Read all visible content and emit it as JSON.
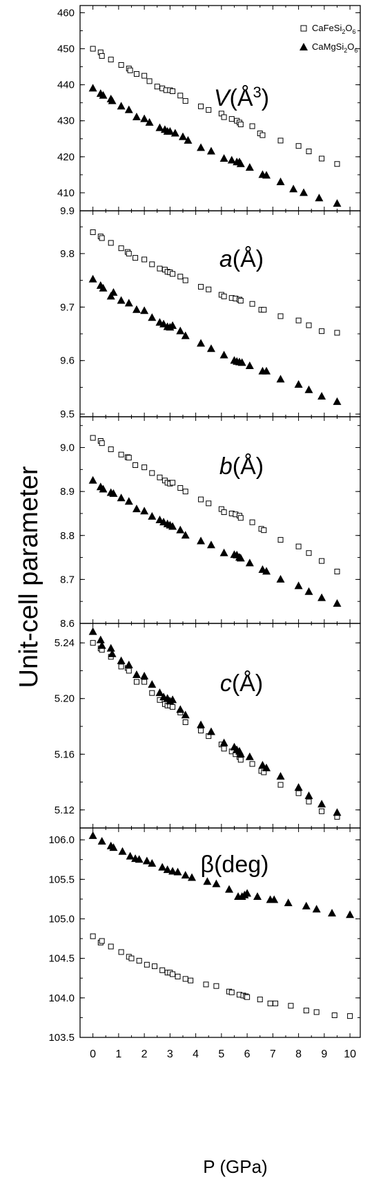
{
  "figure": {
    "ylabel": "Unit-cell parameter",
    "xlabel": "P (GPa)",
    "x_ticks": [
      "0",
      "1",
      "2",
      "3",
      "4",
      "5",
      "6",
      "7",
      "8",
      "9",
      "10"
    ],
    "legend": [
      {
        "name_main": "CaFeSi",
        "sub1": "2",
        "mid": "O",
        "sub2": "6",
        "marker": "open-square"
      },
      {
        "name_main": "CaMgSi",
        "sub1": "2",
        "mid": "O",
        "sub2": "6",
        "marker": "filled-triangle"
      }
    ]
  },
  "chart_data": [
    {
      "type": "scatter",
      "panel_label": "V(Å3)",
      "label_main": "V",
      "label_rest": "(Å",
      "label_sup": "3",
      "label_close": ")",
      "label_italic": true,
      "ylim": [
        405,
        462
      ],
      "yticks": [
        "410",
        "420",
        "430",
        "440",
        "450",
        "460"
      ],
      "bottom_tick": "9.9",
      "series": [
        {
          "name": "CaFeSi2O6",
          "marker": "square",
          "x": [
            0,
            0.3,
            0.35,
            0.7,
            1.1,
            1.4,
            1.45,
            1.7,
            2.0,
            2.2,
            2.5,
            2.7,
            2.85,
            3.0,
            3.1,
            3.4,
            3.6,
            4.2,
            4.5,
            5.0,
            5.1,
            5.4,
            5.6,
            5.7,
            5.75,
            6.2,
            6.5,
            6.6,
            7.3,
            8.0,
            8.4,
            8.9,
            9.5
          ],
          "y": [
            450,
            449,
            448,
            447,
            445.5,
            444.5,
            444,
            443,
            442.5,
            441,
            439.5,
            439,
            438.5,
            438.5,
            438.2,
            437,
            435.5,
            434,
            433,
            432,
            431,
            430.5,
            430,
            429.5,
            429,
            428.5,
            426.5,
            426,
            424.5,
            423,
            421.5,
            419.5,
            418
          ]
        },
        {
          "name": "CaMgSi2O6",
          "marker": "triangle",
          "x": [
            0,
            0.3,
            0.4,
            0.7,
            0.75,
            1.1,
            1.4,
            1.7,
            2.0,
            2.2,
            2.6,
            2.8,
            2.9,
            3.0,
            3.2,
            3.5,
            3.7,
            4.2,
            4.6,
            5.1,
            5.4,
            5.6,
            5.7,
            5.75,
            6.1,
            6.6,
            6.75,
            7.3,
            7.8,
            8.2,
            8.8,
            9.5
          ],
          "y": [
            439,
            437.5,
            437,
            436,
            435.5,
            434,
            433,
            431,
            430.5,
            429.5,
            428,
            427.5,
            427,
            427,
            426.5,
            425.5,
            424.5,
            422.5,
            421.5,
            419.5,
            419,
            418.5,
            418.5,
            418,
            417,
            415,
            414.8,
            413,
            411,
            410,
            408.5,
            407
          ]
        }
      ]
    },
    {
      "type": "scatter",
      "panel_label": "a(Å)",
      "label_main": "a",
      "label_rest": "(Å)",
      "label_sup": "",
      "label_close": "",
      "label_italic": true,
      "ylim": [
        9.495,
        9.88
      ],
      "yticks": [
        "9.5",
        "9.6",
        "9.7",
        "9.8"
      ],
      "series": [
        {
          "name": "CaFeSi2O6",
          "marker": "square",
          "x": [
            0,
            0.3,
            0.35,
            0.7,
            1.1,
            1.35,
            1.4,
            1.65,
            2.0,
            2.3,
            2.6,
            2.8,
            2.9,
            3.0,
            3.1,
            3.4,
            3.6,
            4.2,
            4.5,
            5.0,
            5.1,
            5.4,
            5.55,
            5.7,
            5.75,
            6.2,
            6.55,
            6.65,
            7.3,
            8.0,
            8.4,
            8.9,
            9.5
          ],
          "y": [
            9.84,
            9.832,
            9.829,
            9.82,
            9.81,
            9.803,
            9.8,
            9.792,
            9.789,
            9.78,
            9.772,
            9.77,
            9.766,
            9.765,
            9.762,
            9.757,
            9.75,
            9.738,
            9.733,
            9.723,
            9.72,
            9.717,
            9.716,
            9.714,
            9.712,
            9.706,
            9.695,
            9.695,
            9.683,
            9.675,
            9.666,
            9.655,
            9.652
          ]
        },
        {
          "name": "CaMgSi2O6",
          "marker": "triangle",
          "x": [
            0,
            0.3,
            0.4,
            0.7,
            0.8,
            1.1,
            1.4,
            1.7,
            2.0,
            2.3,
            2.6,
            2.75,
            2.9,
            3.0,
            3.1,
            3.4,
            3.6,
            4.2,
            4.6,
            5.1,
            5.5,
            5.6,
            5.7,
            5.8,
            6.1,
            6.6,
            6.75,
            7.3,
            8.0,
            8.4,
            8.9,
            9.5
          ],
          "y": [
            9.752,
            9.74,
            9.735,
            9.72,
            9.727,
            9.712,
            9.707,
            9.695,
            9.693,
            9.68,
            9.671,
            9.668,
            9.663,
            9.662,
            9.665,
            9.655,
            9.646,
            9.632,
            9.622,
            9.61,
            9.6,
            9.598,
            9.597,
            9.596,
            9.59,
            9.58,
            9.58,
            9.565,
            9.555,
            9.545,
            9.533,
            9.523
          ]
        }
      ]
    },
    {
      "type": "scatter",
      "panel_label": "b(Å)",
      "label_main": "b",
      "label_rest": "(Å)",
      "label_sup": "",
      "label_close": "",
      "label_italic": true,
      "ylim": [
        8.6,
        9.07
      ],
      "yticks": [
        "8.6",
        "8.7",
        "8.8",
        "8.9",
        "9.0"
      ],
      "series": [
        {
          "name": "CaFeSi2O6",
          "marker": "square",
          "x": [
            0,
            0.3,
            0.35,
            0.7,
            1.1,
            1.35,
            1.4,
            1.65,
            2.0,
            2.3,
            2.6,
            2.8,
            2.9,
            3.0,
            3.1,
            3.4,
            3.6,
            4.2,
            4.5,
            5.0,
            5.1,
            5.4,
            5.55,
            5.7,
            5.75,
            6.2,
            6.55,
            6.65,
            7.3,
            8.0,
            8.4,
            8.9,
            9.5
          ],
          "y": [
            9.022,
            9.015,
            9.01,
            8.996,
            8.984,
            8.978,
            8.977,
            8.96,
            8.955,
            8.942,
            8.932,
            8.925,
            8.92,
            8.918,
            8.92,
            8.908,
            8.9,
            8.882,
            8.873,
            8.86,
            8.853,
            8.85,
            8.848,
            8.845,
            8.84,
            8.83,
            8.815,
            8.812,
            8.79,
            8.775,
            8.76,
            8.742,
            8.718
          ]
        },
        {
          "name": "CaMgSi2O6",
          "marker": "triangle",
          "x": [
            0,
            0.3,
            0.4,
            0.7,
            0.8,
            1.1,
            1.4,
            1.7,
            2.0,
            2.3,
            2.6,
            2.75,
            2.9,
            3.0,
            3.1,
            3.4,
            3.6,
            4.2,
            4.6,
            5.1,
            5.5,
            5.6,
            5.7,
            5.75,
            6.1,
            6.6,
            6.75,
            7.3,
            8.0,
            8.4,
            8.9,
            9.5
          ],
          "y": [
            8.925,
            8.91,
            8.905,
            8.897,
            8.895,
            8.885,
            8.877,
            8.86,
            8.855,
            8.843,
            8.835,
            8.83,
            8.826,
            8.823,
            8.82,
            8.812,
            8.8,
            8.787,
            8.778,
            8.76,
            8.756,
            8.755,
            8.75,
            8.748,
            8.737,
            8.722,
            8.718,
            8.7,
            8.685,
            8.672,
            8.658,
            8.645
          ]
        }
      ]
    },
    {
      "type": "scatter",
      "panel_label": "c(Å)",
      "label_main": "c",
      "label_rest": "(Å)",
      "label_sup": "",
      "label_close": "",
      "label_italic": true,
      "ylim": [
        5.107,
        5.254
      ],
      "yticks": [
        "5.12",
        "5.16",
        "5.20",
        "5.24"
      ],
      "series": [
        {
          "name": "CaFeSi2O6",
          "marker": "square",
          "x": [
            0,
            0.3,
            0.35,
            0.7,
            1.1,
            1.35,
            1.4,
            1.7,
            2.0,
            2.3,
            2.6,
            2.8,
            2.9,
            3.0,
            3.1,
            3.4,
            3.6,
            4.2,
            4.5,
            5.0,
            5.1,
            5.4,
            5.55,
            5.7,
            5.75,
            6.2,
            6.55,
            6.65,
            7.3,
            8.0,
            8.4,
            8.9,
            9.5
          ],
          "y": [
            5.24,
            5.236,
            5.235,
            5.23,
            5.223,
            5.222,
            5.22,
            5.212,
            5.212,
            5.204,
            5.199,
            5.196,
            5.195,
            5.195,
            5.194,
            5.19,
            5.183,
            5.177,
            5.173,
            5.167,
            5.164,
            5.162,
            5.16,
            5.158,
            5.156,
            5.153,
            5.148,
            5.147,
            5.138,
            5.132,
            5.126,
            5.119,
            5.115
          ]
        },
        {
          "name": "CaMgSi2O6",
          "marker": "triangle",
          "x": [
            0,
            0.3,
            0.35,
            0.7,
            0.75,
            1.1,
            1.4,
            1.7,
            2.0,
            2.3,
            2.6,
            2.75,
            2.9,
            3.0,
            3.1,
            3.4,
            3.6,
            4.2,
            4.6,
            5.1,
            5.5,
            5.6,
            5.7,
            5.75,
            6.1,
            6.6,
            6.75,
            7.3,
            8.0,
            8.4,
            8.9,
            9.5
          ],
          "y": [
            5.248,
            5.242,
            5.238,
            5.236,
            5.232,
            5.227,
            5.224,
            5.217,
            5.216,
            5.21,
            5.204,
            5.201,
            5.2,
            5.198,
            5.199,
            5.192,
            5.188,
            5.181,
            5.176,
            5.168,
            5.165,
            5.163,
            5.162,
            5.16,
            5.158,
            5.152,
            5.15,
            5.144,
            5.136,
            5.13,
            5.124,
            5.118
          ]
        }
      ]
    },
    {
      "type": "scatter",
      "panel_label": "β(deg)",
      "label_main": "β",
      "label_rest": "(deg)",
      "label_sup": "",
      "label_close": "",
      "label_italic": false,
      "ylim": [
        103.5,
        106.15
      ],
      "yticks": [
        "103.5",
        "104.0",
        "104.5",
        "105.0",
        "105.5",
        "106.0"
      ],
      "series": [
        {
          "name": "CaFeSi2O6",
          "marker": "square",
          "x": [
            0,
            0.3,
            0.35,
            0.7,
            1.1,
            1.4,
            1.5,
            1.8,
            2.1,
            2.4,
            2.7,
            2.9,
            3.0,
            3.1,
            3.3,
            3.6,
            3.8,
            4.4,
            4.8,
            5.3,
            5.4,
            5.7,
            5.85,
            5.95,
            6.0,
            6.5,
            6.9,
            7.1,
            7.7,
            8.3,
            8.7,
            9.4,
            10.0
          ],
          "y": [
            104.78,
            104.7,
            104.72,
            104.65,
            104.58,
            104.52,
            104.5,
            104.47,
            104.42,
            104.4,
            104.35,
            104.32,
            104.32,
            104.3,
            104.27,
            104.24,
            104.22,
            104.17,
            104.15,
            104.08,
            104.07,
            104.04,
            104.03,
            104.02,
            104.01,
            103.98,
            103.93,
            103.93,
            103.9,
            103.84,
            103.82,
            103.78,
            103.77
          ]
        },
        {
          "name": "CaMgSi2O6",
          "marker": "triangle",
          "x": [
            0,
            0.35,
            0.7,
            0.8,
            1.15,
            1.45,
            1.65,
            1.8,
            2.1,
            2.3,
            2.7,
            2.9,
            3.1,
            3.3,
            3.6,
            3.85,
            4.45,
            4.8,
            5.3,
            5.65,
            5.8,
            5.9,
            6.0,
            6.4,
            6.9,
            7.05,
            7.6,
            8.3,
            8.7,
            9.3,
            10.0
          ],
          "y": [
            106.05,
            105.98,
            105.92,
            105.9,
            105.85,
            105.79,
            105.76,
            105.75,
            105.73,
            105.7,
            105.65,
            105.62,
            105.6,
            105.59,
            105.55,
            105.52,
            105.47,
            105.44,
            105.37,
            105.28,
            105.28,
            105.3,
            105.32,
            105.28,
            105.24,
            105.24,
            105.2,
            105.16,
            105.12,
            105.07,
            105.05
          ]
        }
      ]
    }
  ]
}
